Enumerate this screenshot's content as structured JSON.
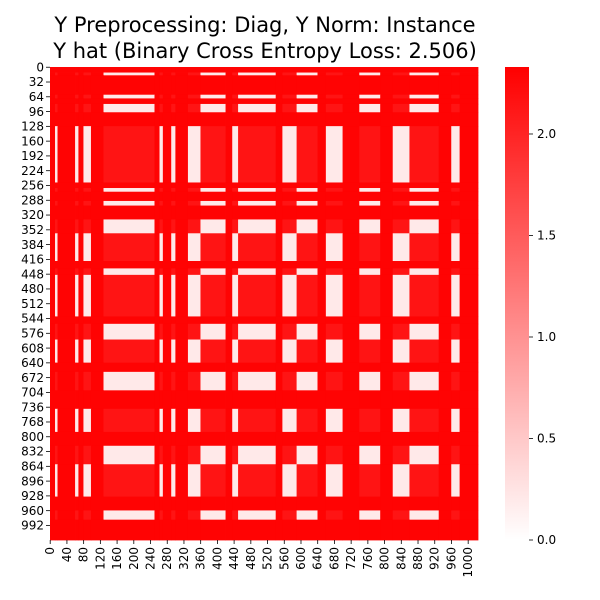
{
  "chart_data": {
    "type": "heatmap",
    "title": "Y Preprocessing: Diag, Y Norm: Instance",
    "subtitle": "Y hat (Binary Cross Entropy Loss: 2.506)",
    "xlabel": "",
    "ylabel": "",
    "n_rows": 1024,
    "n_cols": 1024,
    "x_ticks": [
      "0",
      "40",
      "80",
      "120",
      "160",
      "200",
      "240",
      "280",
      "320",
      "360",
      "400",
      "440",
      "480",
      "520",
      "560",
      "600",
      "640",
      "680",
      "720",
      "760",
      "800",
      "840",
      "880",
      "920",
      "960",
      "1000"
    ],
    "y_ticks": [
      "0",
      "32",
      "64",
      "96",
      "128",
      "160",
      "192",
      "224",
      "256",
      "288",
      "320",
      "352",
      "384",
      "416",
      "448",
      "480",
      "512",
      "544",
      "576",
      "608",
      "640",
      "672",
      "704",
      "736",
      "768",
      "800",
      "832",
      "864",
      "896",
      "928",
      "960",
      "992"
    ],
    "colorbar": {
      "min": 0.0,
      "max": 2.33,
      "ticks": [
        "0.0",
        "0.5",
        "1.0",
        "1.5",
        "2.0"
      ],
      "color_low": "#ffffff",
      "color_high": "#ff0000"
    },
    "grid": false,
    "block_pattern": {
      "description_units": "index ranges in matrix rows/cols",
      "blocks": [
        [
          0,
          12,
          1
        ],
        [
          12,
          18,
          0
        ],
        [
          18,
          60,
          1
        ],
        [
          60,
          68,
          0
        ],
        [
          68,
          80,
          1
        ],
        [
          80,
          98,
          0
        ],
        [
          98,
          128,
          1
        ],
        [
          128,
          250,
          2
        ],
        [
          250,
          262,
          1
        ],
        [
          262,
          270,
          0
        ],
        [
          270,
          290,
          1
        ],
        [
          290,
          300,
          0
        ],
        [
          300,
          330,
          1
        ],
        [
          330,
          360,
          0
        ],
        [
          360,
          420,
          2
        ],
        [
          420,
          436,
          1
        ],
        [
          436,
          450,
          0
        ],
        [
          450,
          540,
          2
        ],
        [
          540,
          556,
          1
        ],
        [
          556,
          590,
          0
        ],
        [
          590,
          640,
          2
        ],
        [
          640,
          660,
          1
        ],
        [
          660,
          700,
          0
        ],
        [
          700,
          740,
          1
        ],
        [
          740,
          790,
          2
        ],
        [
          790,
          820,
          1
        ],
        [
          820,
          860,
          0
        ],
        [
          860,
          930,
          2
        ],
        [
          930,
          960,
          1
        ],
        [
          960,
          980,
          0
        ],
        [
          980,
          1024,
          1
        ]
      ]
    }
  }
}
